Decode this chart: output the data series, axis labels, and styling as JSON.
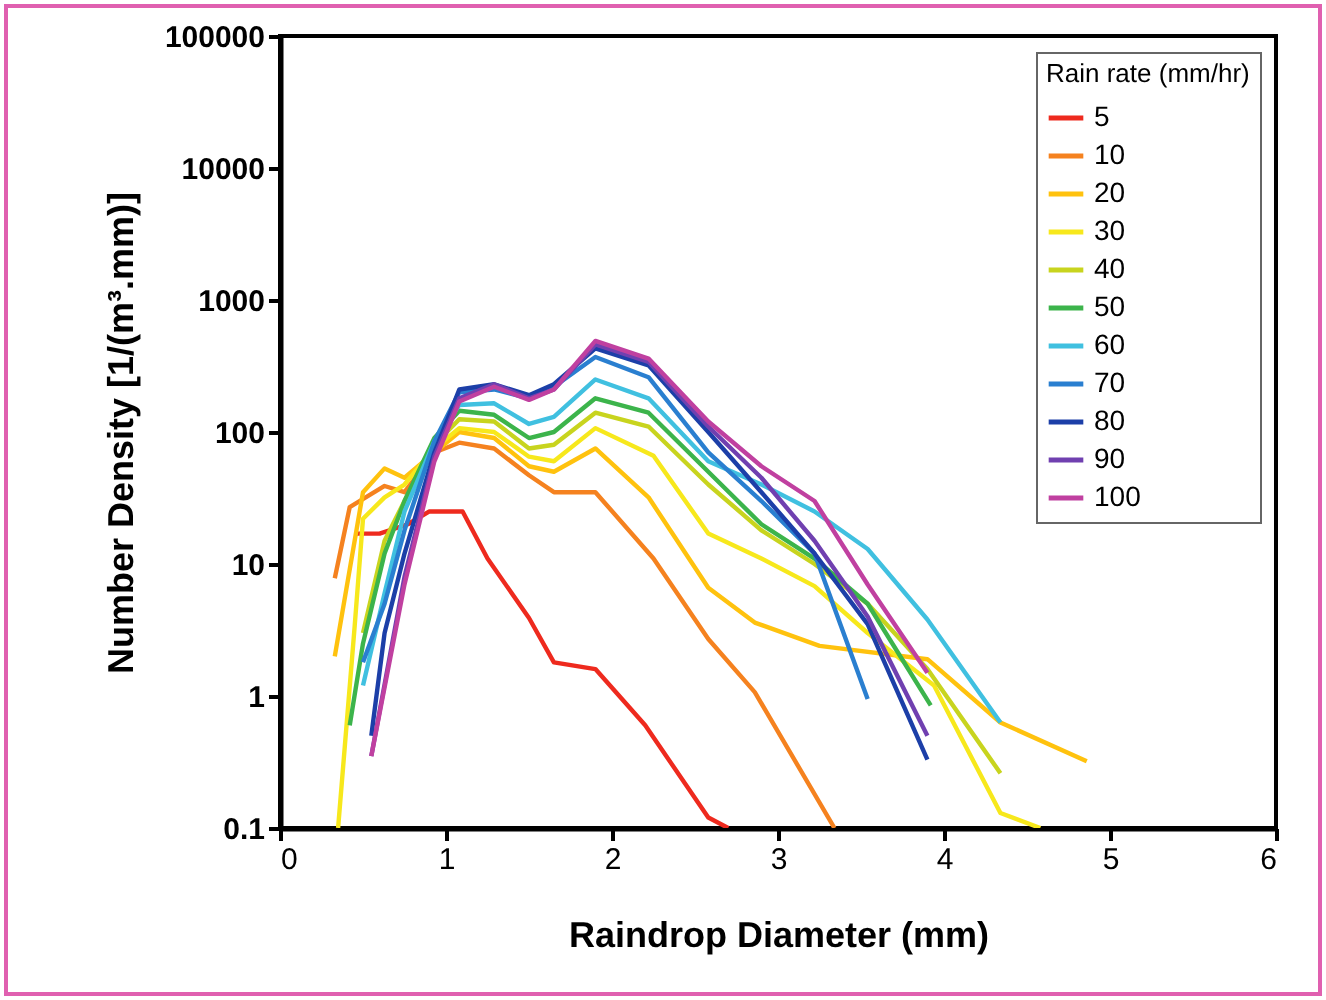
{
  "chart_data": {
    "type": "line",
    "xlabel": "Raindrop Diameter (mm)",
    "ylabel": "Number Density [1/(m³.mm)]",
    "legend_title": "Rain rate (mm/hr)",
    "legend": "top right",
    "log": "y",
    "grid": false,
    "line_style": "solid",
    "marker": "none",
    "xlim": [
      0,
      6
    ],
    "xticks": [
      0,
      1,
      2,
      3,
      4,
      5,
      6
    ],
    "ylim": [
      0.1,
      100000
    ],
    "yticks": [
      0.1,
      1,
      10,
      100,
      1000,
      10000,
      100000
    ],
    "series": [
      {
        "name": "5",
        "color": "#ee2a1e",
        "x": [
          0.45,
          0.6,
          0.77,
          0.9,
          1.1,
          1.25,
          1.5,
          1.65,
          1.9,
          2.2,
          2.58,
          2.7
        ],
        "values": [
          17,
          17,
          20,
          25,
          25,
          11,
          3.9,
          1.8,
          1.6,
          0.6,
          0.12,
          0.1
        ]
      },
      {
        "name": "10",
        "color": "#f5821f",
        "x": [
          0.33,
          0.42,
          0.63,
          0.75,
          0.93,
          1.08,
          1.29,
          1.5,
          1.65,
          1.9,
          2.25,
          2.58,
          2.86,
          3.34
        ],
        "values": [
          7.8,
          27,
          39,
          35,
          70,
          83,
          75,
          47,
          35,
          35,
          11,
          2.7,
          1.07,
          0.1
        ]
      },
      {
        "name": "20",
        "color": "#ffc20e",
        "x": [
          0.33,
          0.5,
          0.63,
          0.75,
          0.93,
          1.08,
          1.29,
          1.5,
          1.65,
          1.9,
          2.22,
          2.58,
          2.86,
          3.25,
          3.9,
          4.34,
          4.86
        ],
        "values": [
          2,
          35,
          53,
          45,
          70,
          100,
          90,
          55,
          50,
          75,
          32,
          6.6,
          3.6,
          2.4,
          1.9,
          0.63,
          0.32
        ]
      },
      {
        "name": "30",
        "color": "#f7e81c",
        "x": [
          0.35,
          0.45,
          0.5,
          0.63,
          0.75,
          0.93,
          1.08,
          1.29,
          1.5,
          1.65,
          1.9,
          2.25,
          2.58,
          2.9,
          3.22,
          3.54,
          3.94,
          4.34,
          4.58
        ],
        "values": [
          0.1,
          3.4,
          22,
          32,
          40,
          75,
          107,
          100,
          65,
          60,
          107,
          66,
          17,
          11,
          6.8,
          3,
          1.2,
          0.13,
          0.1
        ]
      },
      {
        "name": "40",
        "color": "#c8d41e",
        "x": [
          0.5,
          0.63,
          0.75,
          0.93,
          1.08,
          1.29,
          1.5,
          1.65,
          1.9,
          2.22,
          2.58,
          2.9,
          3.22,
          3.54,
          3.9,
          4.34
        ],
        "values": [
          3,
          15,
          30,
          80,
          125,
          120,
          75,
          80,
          140,
          110,
          40,
          18,
          10,
          5,
          1.6,
          0.26
        ]
      },
      {
        "name": "50",
        "color": "#3cb44b",
        "x": [
          0.42,
          0.5,
          0.63,
          0.75,
          0.93,
          1.08,
          1.29,
          1.5,
          1.65,
          1.9,
          2.22,
          2.58,
          2.9,
          3.22,
          3.54,
          3.92
        ],
        "values": [
          0.6,
          2.5,
          12,
          30,
          90,
          145,
          135,
          90,
          100,
          180,
          140,
          50,
          20,
          11,
          5,
          0.85
        ]
      },
      {
        "name": "60",
        "color": "#40c0e0",
        "x": [
          0.5,
          0.63,
          0.75,
          0.93,
          1.08,
          1.29,
          1.5,
          1.65,
          1.9,
          2.22,
          2.58,
          2.9,
          3.22,
          3.54,
          3.9,
          4.34
        ],
        "values": [
          1.2,
          6,
          25,
          85,
          160,
          165,
          115,
          130,
          250,
          180,
          60,
          40,
          25,
          13,
          3.8,
          0.63
        ]
      },
      {
        "name": "70",
        "color": "#2a7fd0",
        "x": [
          0.5,
          0.63,
          0.75,
          0.93,
          1.08,
          1.29,
          1.5,
          1.65,
          1.9,
          2.22,
          2.58,
          2.9,
          3.22,
          3.54
        ],
        "values": [
          1.8,
          5,
          18,
          85,
          200,
          210,
          180,
          220,
          370,
          260,
          70,
          30,
          12,
          0.95
        ]
      },
      {
        "name": "80",
        "color": "#1c3fa8",
        "x": [
          0.55,
          0.63,
          0.75,
          0.93,
          1.08,
          1.29,
          1.5,
          1.65,
          1.9,
          2.22,
          2.58,
          2.9,
          3.22,
          3.54,
          3.9
        ],
        "values": [
          0.5,
          3,
          12,
          70,
          210,
          230,
          190,
          230,
          430,
          320,
          100,
          35,
          12,
          3.5,
          0.33
        ]
      },
      {
        "name": "90",
        "color": "#7040b0",
        "x": [
          0.55,
          0.75,
          0.93,
          1.08,
          1.29,
          1.5,
          1.65,
          1.9,
          2.22,
          2.58,
          2.9,
          3.22,
          3.54,
          3.9
        ],
        "values": [
          0.35,
          8,
          65,
          180,
          230,
          180,
          210,
          460,
          340,
          110,
          45,
          15,
          4,
          0.5
        ]
      },
      {
        "name": "100",
        "color": "#c040a0",
        "x": [
          0.55,
          0.75,
          0.93,
          1.08,
          1.29,
          1.5,
          1.65,
          1.9,
          2.22,
          2.58,
          2.9,
          3.22,
          3.54,
          3.9
        ],
        "values": [
          0.35,
          7,
          60,
          170,
          220,
          175,
          210,
          490,
          360,
          120,
          55,
          30,
          7,
          1.5
        ]
      }
    ]
  }
}
